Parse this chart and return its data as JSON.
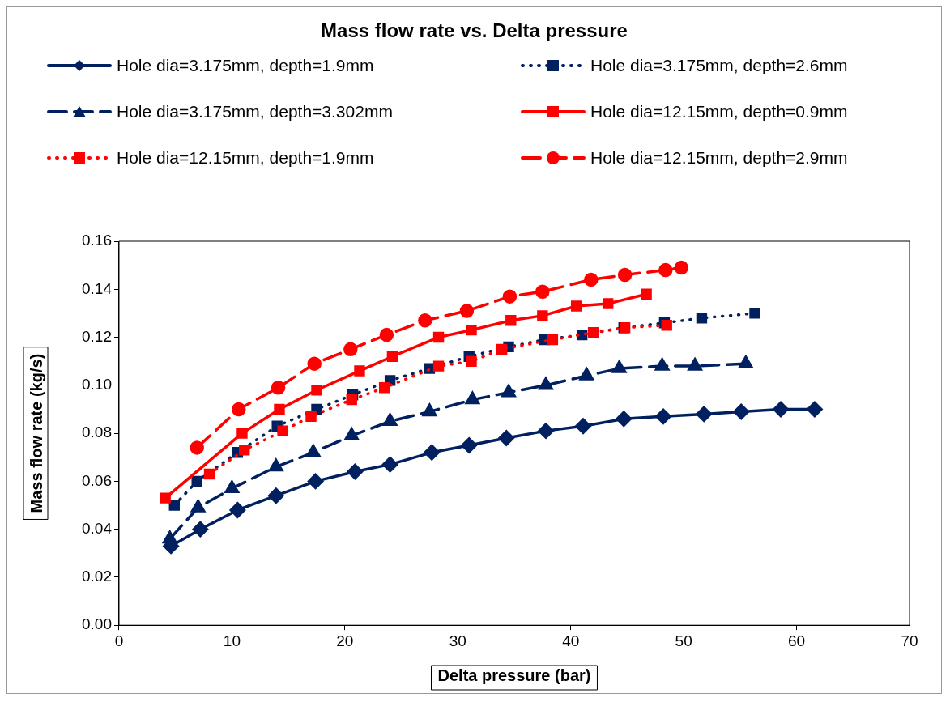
{
  "chart_data": {
    "type": "line",
    "title": "Mass flow rate vs. Delta pressure",
    "xlabel": "Delta pressure (bar)",
    "ylabel": "Mass flow rate (kg/s)",
    "xlim": [
      0,
      70
    ],
    "xticks": [
      0,
      10,
      20,
      30,
      40,
      50,
      60,
      70
    ],
    "ylim": [
      0,
      0.16
    ],
    "yticks": [
      {
        "value": 0,
        "label": "0.00"
      },
      {
        "value": 0.02,
        "label": "0.02"
      },
      {
        "value": 0.04,
        "label": "0.04"
      },
      {
        "value": 0.06,
        "label": "0.06"
      },
      {
        "value": 0.08,
        "label": "0.08"
      },
      {
        "value": 0.1,
        "label": "0.10"
      },
      {
        "value": 0.12,
        "label": "0.12"
      },
      {
        "value": 0.14,
        "label": "0.14"
      },
      {
        "value": 0.16,
        "label": "0.16"
      }
    ],
    "grid": false,
    "legend": "top",
    "series": [
      {
        "name": "Hole dia=3.175mm, depth=1.9mm",
        "color": "#002060",
        "marker": "diamond",
        "line_style": "solid",
        "x": [
          4.6,
          7.2,
          10.5,
          13.9,
          17.4,
          20.9,
          24.0,
          27.7,
          31.0,
          34.3,
          37.8,
          41.1,
          44.7,
          48.2,
          51.8,
          55.1,
          58.6,
          61.6
        ],
        "values": [
          0.033,
          0.04,
          0.048,
          0.054,
          0.06,
          0.064,
          0.067,
          0.072,
          0.075,
          0.078,
          0.081,
          0.083,
          0.086,
          0.087,
          0.088,
          0.089,
          0.09,
          0.09
        ]
      },
      {
        "name": "Hole dia=3.175mm, depth=2.6mm",
        "color": "#002060",
        "marker": "square",
        "line_style": "dotted",
        "x": [
          4.9,
          6.9,
          10.5,
          14.0,
          17.5,
          20.7,
          24.0,
          27.5,
          31.0,
          34.5,
          37.7,
          41.0,
          44.7,
          48.3,
          51.6,
          56.3
        ],
        "values": [
          0.05,
          0.06,
          0.072,
          0.083,
          0.09,
          0.096,
          0.102,
          0.107,
          0.112,
          0.116,
          0.119,
          0.121,
          0.124,
          0.126,
          0.128,
          0.13
        ]
      },
      {
        "name": "Hole dia=3.175mm, depth=3.302mm",
        "color": "#002060",
        "marker": "triangle",
        "line_style": "dashed",
        "x": [
          4.5,
          7.0,
          10.0,
          13.9,
          17.2,
          20.6,
          24.0,
          27.5,
          31.3,
          34.5,
          37.8,
          41.4,
          44.3,
          48.1,
          51.0,
          55.5
        ],
        "values": [
          0.036,
          0.049,
          0.057,
          0.066,
          0.072,
          0.079,
          0.085,
          0.089,
          0.094,
          0.097,
          0.1,
          0.104,
          0.107,
          0.108,
          0.108,
          0.109
        ]
      },
      {
        "name": "Hole dia=12.15mm, depth=0.9mm",
        "color": "#ff0000",
        "marker": "square",
        "line_style": "solid",
        "x": [
          4.1,
          10.9,
          14.2,
          17.5,
          21.3,
          24.2,
          28.3,
          31.2,
          34.7,
          37.5,
          40.5,
          43.3,
          46.7
        ],
        "values": [
          0.053,
          0.08,
          0.09,
          0.098,
          0.106,
          0.112,
          0.12,
          0.123,
          0.127,
          0.129,
          0.133,
          0.134,
          0.138
        ]
      },
      {
        "name": "Hole dia=12.15mm, depth=1.9mm",
        "color": "#ff0000",
        "marker": "square",
        "line_style": "dotted",
        "x": [
          8.0,
          11.1,
          14.5,
          17.0,
          20.6,
          23.5,
          28.3,
          31.2,
          33.9,
          38.4,
          42.0,
          44.8,
          48.5
        ],
        "values": [
          0.063,
          0.073,
          0.081,
          0.087,
          0.094,
          0.099,
          0.108,
          0.11,
          0.115,
          0.119,
          0.122,
          0.124,
          0.125
        ]
      },
      {
        "name": "Hole dia=12.15mm, depth=2.9mm",
        "color": "#ff0000",
        "marker": "circle",
        "line_style": "dashed",
        "x": [
          6.9,
          10.6,
          14.1,
          17.3,
          20.5,
          23.7,
          27.1,
          30.8,
          34.6,
          37.5,
          41.8,
          44.8,
          48.4,
          49.8
        ],
        "values": [
          0.074,
          0.09,
          0.099,
          0.109,
          0.115,
          0.121,
          0.127,
          0.131,
          0.137,
          0.139,
          0.144,
          0.146,
          0.148,
          0.149
        ]
      }
    ]
  }
}
